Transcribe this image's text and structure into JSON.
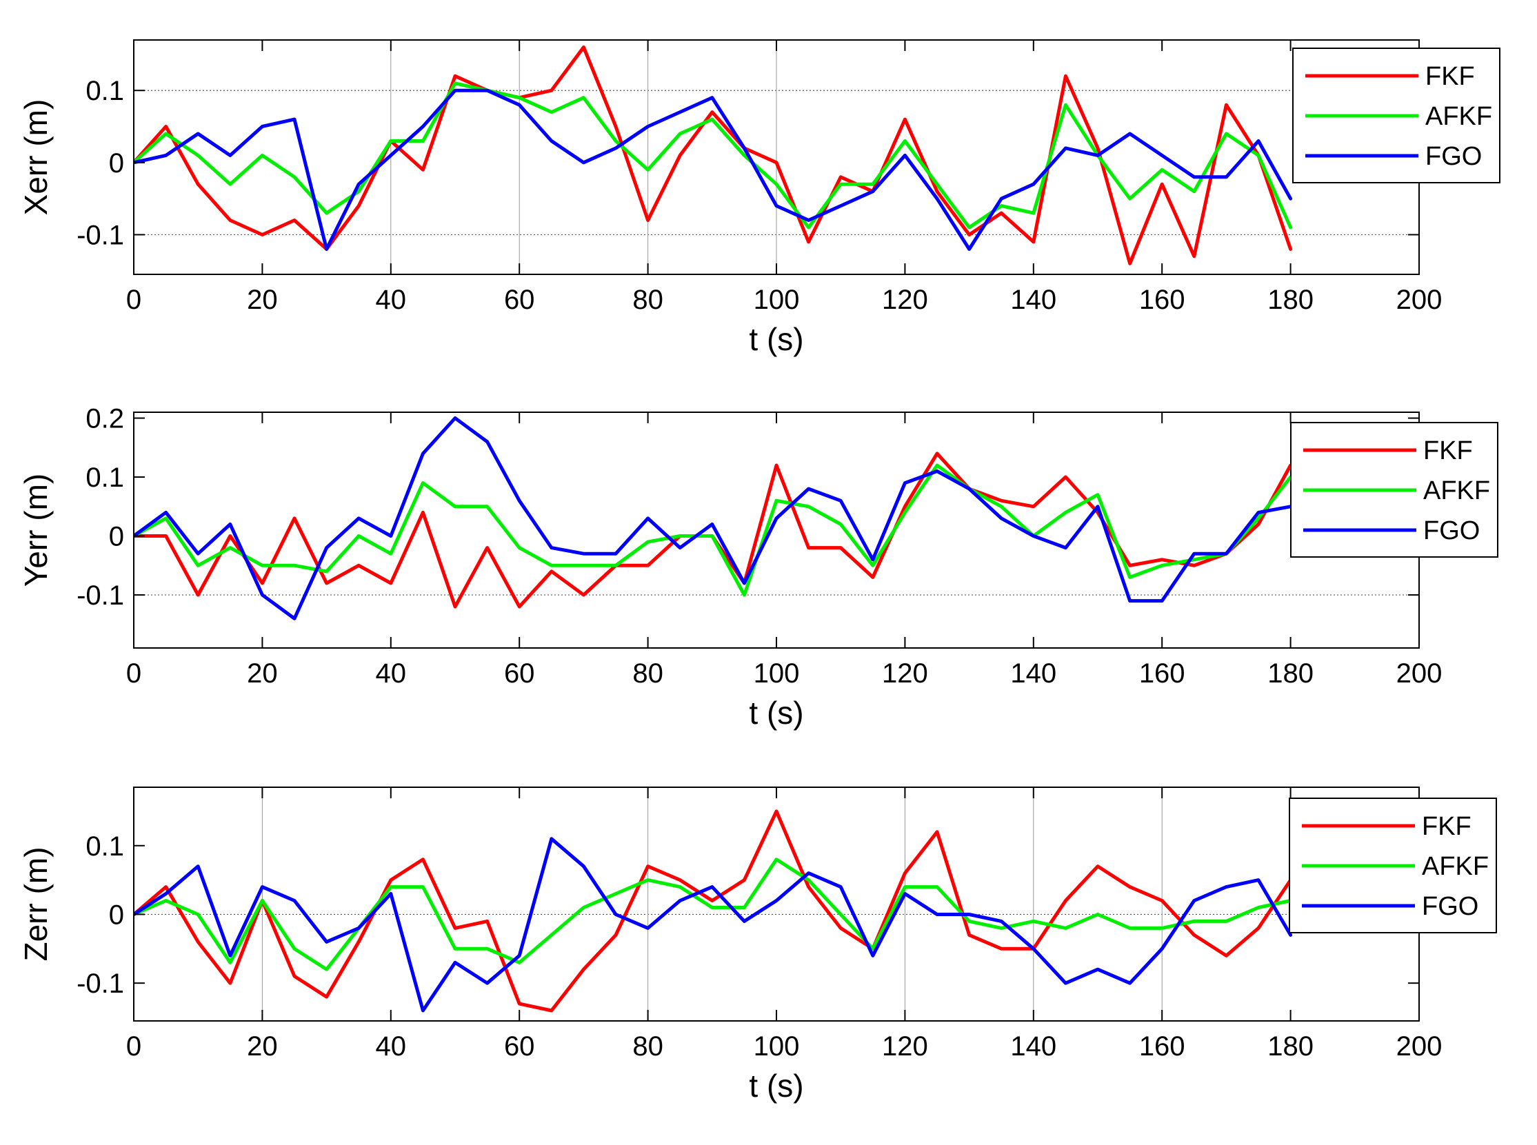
{
  "chart_data": [
    {
      "type": "line",
      "xlabel": "t (s)",
      "ylabel": "Xerr (m)",
      "xlim": [
        0,
        200
      ],
      "ylim": [
        -0.155,
        0.17
      ],
      "xticks": [
        0,
        20,
        40,
        60,
        80,
        100,
        120,
        140,
        160,
        180,
        200
      ],
      "xtick_labels": [
        "0",
        "20",
        "40",
        "60",
        "80",
        "100",
        "120",
        "140",
        "160",
        "180",
        "200"
      ],
      "yticks": [
        -0.1,
        0,
        0.1
      ],
      "ytick_labels": [
        "-0.1",
        "0",
        "0.1"
      ],
      "legend_position": "top-right",
      "grid": "dotted lines at y = -0.1 and 0.1",
      "x": [
        0,
        5,
        10,
        15,
        20,
        25,
        30,
        35,
        40,
        45,
        50,
        55,
        60,
        65,
        70,
        75,
        80,
        85,
        90,
        95,
        100,
        105,
        110,
        115,
        120,
        125,
        130,
        135,
        140,
        145,
        150,
        155,
        160,
        165,
        170,
        175,
        180
      ],
      "series": [
        {
          "name": "FKF",
          "color": "#ff0000",
          "values": [
            0,
            0.05,
            -0.03,
            -0.08,
            -0.1,
            -0.08,
            -0.12,
            -0.06,
            0.03,
            -0.01,
            0.12,
            0.1,
            0.09,
            0.1,
            0.16,
            0.05,
            -0.08,
            0.01,
            0.07,
            0.02,
            0,
            -0.11,
            -0.02,
            -0.04,
            0.06,
            -0.04,
            -0.1,
            -0.07,
            -0.11,
            0.12,
            0.02,
            -0.14,
            -0.03,
            -0.13,
            0.08,
            0.01,
            -0.12
          ]
        },
        {
          "name": "AFKF",
          "color": "#00ee00",
          "values": [
            0,
            0.04,
            0.01,
            -0.03,
            0.01,
            -0.02,
            -0.07,
            -0.04,
            0.03,
            0.03,
            0.11,
            0.1,
            0.09,
            0.07,
            0.09,
            0.03,
            -0.01,
            0.04,
            0.06,
            0.01,
            -0.03,
            -0.09,
            -0.03,
            -0.03,
            0.03,
            -0.03,
            -0.09,
            -0.06,
            -0.07,
            0.08,
            0.01,
            -0.05,
            -0.01,
            -0.04,
            0.04,
            0.01,
            -0.09
          ]
        },
        {
          "name": "FGO",
          "color": "#0000ff",
          "values": [
            0,
            0.01,
            0.04,
            0.01,
            0.05,
            0.06,
            -0.12,
            -0.03,
            0.01,
            0.05,
            0.1,
            0.1,
            0.08,
            0.03,
            0,
            0.02,
            0.05,
            0.07,
            0.09,
            0.02,
            -0.06,
            -0.08,
            -0.06,
            -0.04,
            0.01,
            -0.05,
            -0.12,
            -0.05,
            -0.03,
            0.02,
            0.01,
            0.04,
            0.01,
            -0.02,
            -0.02,
            0.03,
            -0.05
          ]
        }
      ]
    },
    {
      "type": "line",
      "xlabel": "t (s)",
      "ylabel": "Yerr (m)",
      "xlim": [
        0,
        200
      ],
      "ylim": [
        -0.19,
        0.21
      ],
      "xticks": [
        0,
        20,
        40,
        60,
        80,
        100,
        120,
        140,
        160,
        180,
        200
      ],
      "xtick_labels": [
        "0",
        "20",
        "40",
        "60",
        "80",
        "100",
        "120",
        "140",
        "160",
        "180",
        "200"
      ],
      "yticks": [
        -0.1,
        0,
        0.1,
        0.2
      ],
      "ytick_labels": [
        "-0.1",
        "0",
        "0.1",
        "0.2"
      ],
      "legend_position": "top-right",
      "grid": "dotted line at y = -0.1",
      "x": [
        0,
        5,
        10,
        15,
        20,
        25,
        30,
        35,
        40,
        45,
        50,
        55,
        60,
        65,
        70,
        75,
        80,
        85,
        90,
        95,
        100,
        105,
        110,
        115,
        120,
        125,
        130,
        135,
        140,
        145,
        150,
        155,
        160,
        165,
        170,
        175,
        180
      ],
      "series": [
        {
          "name": "FKF",
          "color": "#ff0000",
          "values": [
            0,
            0,
            -0.1,
            0,
            -0.08,
            0.03,
            -0.08,
            -0.05,
            -0.08,
            0.04,
            -0.12,
            -0.02,
            -0.12,
            -0.06,
            -0.1,
            -0.05,
            -0.05,
            0,
            0,
            -0.08,
            0.12,
            -0.02,
            -0.02,
            -0.07,
            0.05,
            0.14,
            0.08,
            0.06,
            0.05,
            0.1,
            0.04,
            -0.05,
            -0.04,
            -0.05,
            -0.03,
            0.02,
            0.12
          ]
        },
        {
          "name": "AFKF",
          "color": "#00ee00",
          "values": [
            0,
            0.03,
            -0.05,
            -0.02,
            -0.05,
            -0.05,
            -0.06,
            0,
            -0.03,
            0.09,
            0.05,
            0.05,
            -0.02,
            -0.05,
            -0.05,
            -0.05,
            -0.01,
            0,
            0,
            -0.1,
            0.06,
            0.05,
            0.02,
            -0.05,
            0.04,
            0.12,
            0.08,
            0.05,
            0,
            0.04,
            0.07,
            -0.07,
            -0.05,
            -0.04,
            -0.03,
            0.03,
            0.1
          ]
        },
        {
          "name": "FGO",
          "color": "#0000ff",
          "values": [
            0,
            0.04,
            -0.03,
            0.02,
            -0.1,
            -0.14,
            -0.02,
            0.03,
            0,
            0.14,
            0.2,
            0.16,
            0.06,
            -0.02,
            -0.03,
            -0.03,
            0.03,
            -0.02,
            0.02,
            -0.08,
            0.03,
            0.08,
            0.06,
            -0.04,
            0.09,
            0.11,
            0.08,
            0.03,
            0,
            -0.02,
            0.05,
            -0.11,
            -0.11,
            -0.03,
            -0.03,
            0.04,
            0.05
          ]
        }
      ]
    },
    {
      "type": "line",
      "xlabel": "t (s)",
      "ylabel": "Zerr (m)",
      "xlim": [
        0,
        200
      ],
      "ylim": [
        -0.155,
        0.185
      ],
      "xticks": [
        0,
        20,
        40,
        60,
        80,
        100,
        120,
        140,
        160,
        180,
        200
      ],
      "xtick_labels": [
        "0",
        "20",
        "40",
        "60",
        "80",
        "100",
        "120",
        "140",
        "160",
        "180",
        "200"
      ],
      "yticks": [
        -0.1,
        0,
        0.1
      ],
      "ytick_labels": [
        "-0.1",
        "0",
        "0.1"
      ],
      "legend_position": "top-right",
      "grid": "dotted line at y = 0",
      "x": [
        0,
        5,
        10,
        15,
        20,
        25,
        30,
        35,
        40,
        45,
        50,
        55,
        60,
        65,
        70,
        75,
        80,
        85,
        90,
        95,
        100,
        105,
        110,
        115,
        120,
        125,
        130,
        135,
        140,
        145,
        150,
        155,
        160,
        165,
        170,
        175,
        180
      ],
      "series": [
        {
          "name": "FKF",
          "color": "#ff0000",
          "values": [
            0,
            0.04,
            -0.04,
            -0.1,
            0.02,
            -0.09,
            -0.12,
            -0.04,
            0.05,
            0.08,
            -0.02,
            -0.01,
            -0.13,
            -0.14,
            -0.08,
            -0.03,
            0.07,
            0.05,
            0.02,
            0.05,
            0.15,
            0.04,
            -0.02,
            -0.05,
            0.06,
            0.12,
            -0.03,
            -0.05,
            -0.05,
            0.02,
            0.07,
            0.04,
            0.02,
            -0.03,
            -0.06,
            -0.02,
            0.05
          ]
        },
        {
          "name": "AFKF",
          "color": "#00ee00",
          "values": [
            0,
            0.02,
            0,
            -0.07,
            0.02,
            -0.05,
            -0.08,
            -0.02,
            0.04,
            0.04,
            -0.05,
            -0.05,
            -0.07,
            -0.03,
            0.01,
            0.03,
            0.05,
            0.04,
            0.01,
            0.01,
            0.08,
            0.05,
            0,
            -0.05,
            0.04,
            0.04,
            -0.01,
            -0.02,
            -0.01,
            -0.02,
            0,
            -0.02,
            -0.02,
            -0.01,
            -0.01,
            0.01,
            0.02
          ]
        },
        {
          "name": "FGO",
          "color": "#0000ff",
          "values": [
            0,
            0.03,
            0.07,
            -0.06,
            0.04,
            0.02,
            -0.04,
            -0.02,
            0.03,
            -0.14,
            -0.07,
            -0.1,
            -0.06,
            0.11,
            0.07,
            0,
            -0.02,
            0.02,
            0.04,
            -0.01,
            0.02,
            0.06,
            0.04,
            -0.06,
            0.03,
            0,
            0,
            -0.01,
            -0.05,
            -0.1,
            -0.08,
            -0.1,
            -0.05,
            0.02,
            0.04,
            0.05,
            -0.03
          ]
        }
      ]
    }
  ]
}
